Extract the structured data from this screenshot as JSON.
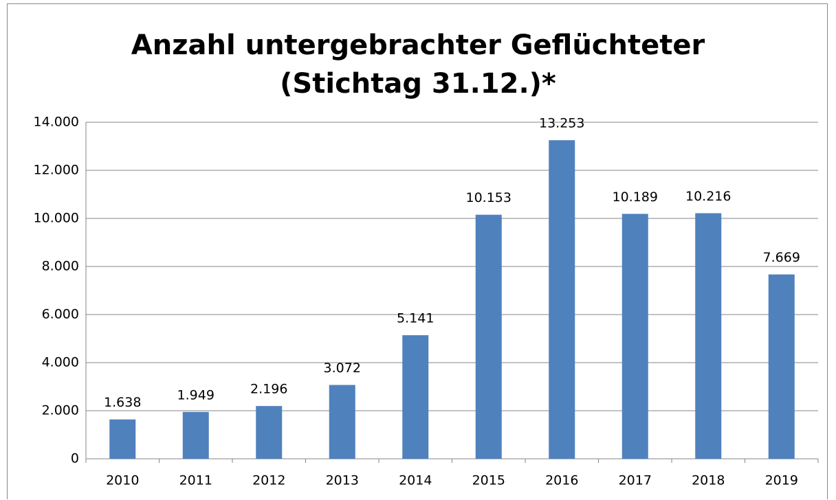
{
  "chart_data": {
    "type": "bar",
    "title": "Anzahl untergebrachter Geflüchteter (Stichtag 31.12.)*",
    "categories": [
      "2010",
      "2011",
      "2012",
      "2013",
      "2014",
      "2015",
      "2016",
      "2017",
      "2018",
      "2019"
    ],
    "values": [
      1638,
      1949,
      2196,
      3072,
      5141,
      10153,
      13253,
      10189,
      10216,
      7669
    ],
    "value_labels": [
      "1.638",
      "1.949",
      "2.196",
      "3.072",
      "5.141",
      "10.153",
      "13.253",
      "10.189",
      "10.216",
      "7.669"
    ],
    "color": "#4f81bd",
    "ylim": [
      0,
      14000
    ],
    "yticks": [
      0,
      {
        "value": 2000,
        "label": "2.000"
      },
      {
        "value": 4000,
        "label": "4.000"
      },
      {
        "value": 6000,
        "label": "6.000"
      },
      {
        "value": 8000,
        "label": "8.000"
      },
      {
        "value": 10000,
        "label": "10.000"
      },
      {
        "value": 12000,
        "label": "12.000"
      },
      {
        "value": 14000,
        "label": "14.000"
      }
    ],
    "grid": true
  }
}
